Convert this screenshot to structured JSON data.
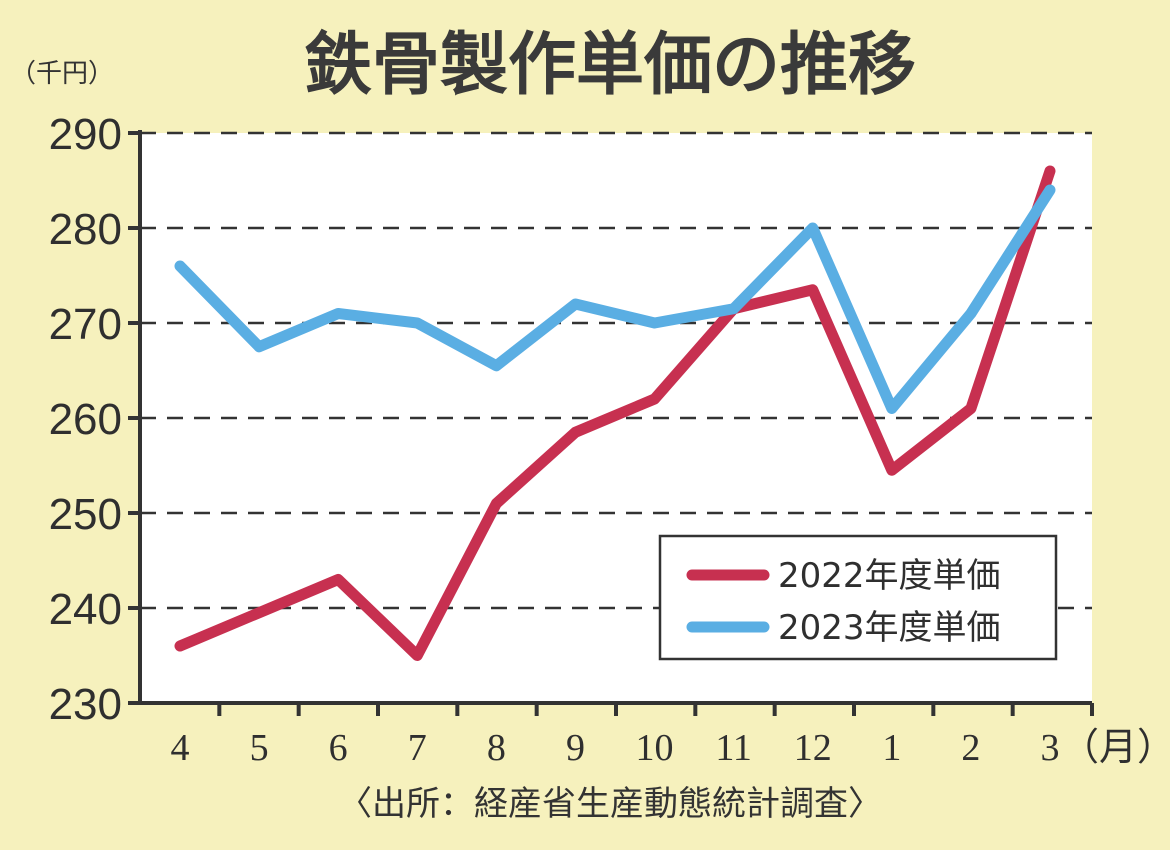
{
  "chart_data": {
    "type": "line",
    "title": "鉄骨製作単価の推移",
    "ylabel": "（千円）",
    "xlabel": "（月）",
    "source": "〈出所：経産省生産動態統計調査〉",
    "categories": [
      "4",
      "5",
      "6",
      "7",
      "8",
      "9",
      "10",
      "11",
      "12",
      "1",
      "2",
      "3"
    ],
    "ylim": [
      230,
      290
    ],
    "yticks": [
      230,
      240,
      250,
      260,
      270,
      280,
      290
    ],
    "grid": "horizontal-dashed",
    "legend_position": "bottom-right",
    "series": [
      {
        "name": "2022年度単価",
        "color": "#c73050",
        "values": [
          236,
          239.5,
          243,
          235,
          251,
          258.5,
          262,
          271.5,
          273.5,
          254.5,
          261,
          286
        ]
      },
      {
        "name": "2023年度単価",
        "color": "#5aaee3",
        "values": [
          276,
          267.5,
          271,
          270,
          265.5,
          272,
          270,
          271.5,
          280,
          261,
          271,
          284
        ]
      }
    ]
  },
  "colors": {
    "background": "#f6f1bd",
    "plot_background": "#ffffff",
    "axis": "#333333"
  }
}
